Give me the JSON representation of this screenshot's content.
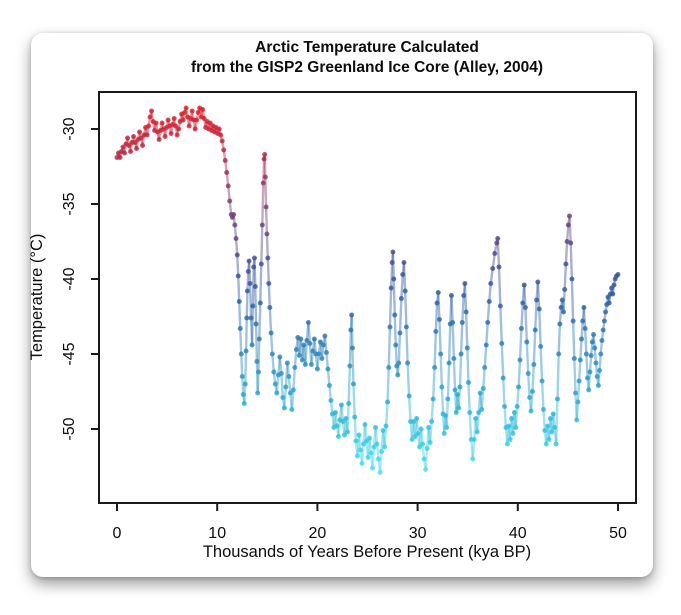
{
  "chart": {
    "title_line1": "Arctic Temperature Calculated",
    "title_line2": "from the GISP2 Greenland Ice Core (Alley, 2004)"
  },
  "chart_data": {
    "type": "line",
    "title": "Arctic Temperature Calculated from the GISP2 Greenland Ice Core (Alley, 2004)",
    "xlabel": "Thousands of Years Before Present (kya BP)",
    "ylabel": "Temperature (°C)",
    "xlim": [
      0,
      50
    ],
    "ylim": [
      -54.9,
      -27.5
    ],
    "x_ticks": [
      0,
      10,
      20,
      30,
      40,
      50
    ],
    "y_ticks": [
      -30,
      -35,
      -40,
      -45,
      -50
    ],
    "grid": false,
    "legend": false,
    "color_encoding": "point color encodes temperature (warm red to cold cyan)",
    "colormap_stops": [
      [
        -54.0,
        "#60eaf4"
      ],
      [
        -52.5,
        "#49dfee"
      ],
      [
        -51.0,
        "#38cde4"
      ],
      [
        -49.5,
        "#31bbd9"
      ],
      [
        -48.0,
        "#2fa9ce"
      ],
      [
        -46.5,
        "#2d97c3"
      ],
      [
        -45.0,
        "#2e86b9"
      ],
      [
        -43.5,
        "#2e76af"
      ],
      [
        -42.0,
        "#2f66a5"
      ],
      [
        -40.5,
        "#33599c"
      ],
      [
        -39.0,
        "#435093"
      ],
      [
        -37.5,
        "#584a87"
      ],
      [
        -36.0,
        "#6f4379"
      ],
      [
        -34.5,
        "#833d6b"
      ],
      [
        -33.0,
        "#9c3258"
      ],
      [
        -31.5,
        "#b62a46"
      ],
      [
        -30.0,
        "#cb2435"
      ],
      [
        -28.5,
        "#d81f2a"
      ]
    ],
    "points": [
      [
        0.0,
        -31.9
      ],
      [
        0.15,
        -31.6
      ],
      [
        0.3,
        -31.9
      ],
      [
        0.45,
        -31.5
      ],
      [
        0.6,
        -31.2
      ],
      [
        0.75,
        -31.6
      ],
      [
        0.9,
        -31.0
      ],
      [
        1.05,
        -30.6
      ],
      [
        1.2,
        -31.1
      ],
      [
        1.35,
        -31.5
      ],
      [
        1.5,
        -30.9
      ],
      [
        1.65,
        -30.5
      ],
      [
        1.8,
        -30.9
      ],
      [
        1.95,
        -31.3
      ],
      [
        2.1,
        -30.7
      ],
      [
        2.25,
        -30.2
      ],
      [
        2.4,
        -30.6
      ],
      [
        2.55,
        -31.1
      ],
      [
        2.7,
        -30.4
      ],
      [
        2.85,
        -29.9
      ],
      [
        3.0,
        -30.4
      ],
      [
        3.15,
        -29.8
      ],
      [
        3.3,
        -29.2
      ],
      [
        3.45,
        -28.8
      ],
      [
        3.6,
        -29.5
      ],
      [
        3.75,
        -30.1
      ],
      [
        3.9,
        -29.6
      ],
      [
        4.05,
        -30.2
      ],
      [
        4.2,
        -30.7
      ],
      [
        4.35,
        -30.1
      ],
      [
        4.5,
        -29.6
      ],
      [
        4.65,
        -30.0
      ],
      [
        4.8,
        -30.5
      ],
      [
        4.95,
        -29.9
      ],
      [
        5.1,
        -29.4
      ],
      [
        5.25,
        -29.8
      ],
      [
        5.4,
        -30.3
      ],
      [
        5.55,
        -29.7
      ],
      [
        5.7,
        -29.3
      ],
      [
        5.85,
        -29.8
      ],
      [
        6.0,
        -30.4
      ],
      [
        6.15,
        -30.0
      ],
      [
        6.3,
        -29.5
      ],
      [
        6.45,
        -29.0
      ],
      [
        6.6,
        -29.4
      ],
      [
        6.75,
        -28.9
      ],
      [
        6.9,
        -28.6
      ],
      [
        7.05,
        -29.2
      ],
      [
        7.2,
        -29.8
      ],
      [
        7.35,
        -29.3
      ],
      [
        7.5,
        -28.8
      ],
      [
        7.65,
        -29.4
      ],
      [
        7.8,
        -30.0
      ],
      [
        7.95,
        -29.4
      ],
      [
        8.1,
        -28.9
      ],
      [
        8.25,
        -28.6
      ],
      [
        8.4,
        -29.2
      ],
      [
        8.55,
        -28.7
      ],
      [
        8.7,
        -29.3
      ],
      [
        8.85,
        -29.9
      ],
      [
        9.0,
        -29.5
      ],
      [
        9.15,
        -30.0
      ],
      [
        9.3,
        -29.6
      ],
      [
        9.45,
        -30.1
      ],
      [
        9.6,
        -29.8
      ],
      [
        9.75,
        -30.2
      ],
      [
        9.9,
        -29.9
      ],
      [
        10.05,
        -30.3
      ],
      [
        10.2,
        -30.0
      ],
      [
        10.35,
        -30.4
      ],
      [
        10.5,
        -30.8
      ],
      [
        10.65,
        -31.4
      ],
      [
        10.8,
        -32.1
      ],
      [
        10.95,
        -32.9
      ],
      [
        11.1,
        -33.8
      ],
      [
        11.25,
        -34.8
      ],
      [
        11.4,
        -35.7
      ],
      [
        11.52,
        -35.9
      ],
      [
        11.64,
        -35.7
      ],
      [
        11.76,
        -36.4
      ],
      [
        11.88,
        -37.3
      ],
      [
        12.0,
        -38.4
      ],
      [
        12.1,
        -39.8
      ],
      [
        12.2,
        -41.5
      ],
      [
        12.3,
        -43.3
      ],
      [
        12.4,
        -45.0
      ],
      [
        12.5,
        -46.5
      ],
      [
        12.6,
        -47.7
      ],
      [
        12.7,
        -48.3
      ],
      [
        12.8,
        -47.0
      ],
      [
        12.88,
        -44.8
      ],
      [
        12.95,
        -42.6
      ],
      [
        13.02,
        -40.8
      ],
      [
        13.1,
        -39.5
      ],
      [
        13.18,
        -38.8
      ],
      [
        13.28,
        -40.3
      ],
      [
        13.38,
        -42.6
      ],
      [
        13.48,
        -44.4
      ],
      [
        13.56,
        -41.8
      ],
      [
        13.64,
        -39.2
      ],
      [
        13.72,
        -38.6
      ],
      [
        13.8,
        -40.5
      ],
      [
        13.88,
        -43.0
      ],
      [
        13.96,
        -45.5
      ],
      [
        14.04,
        -47.6
      ],
      [
        14.12,
        -46.2
      ],
      [
        14.2,
        -44.0
      ],
      [
        14.3,
        -41.6
      ],
      [
        14.4,
        -39.0
      ],
      [
        14.5,
        -36.4
      ],
      [
        14.6,
        -33.6
      ],
      [
        14.68,
        -32.0
      ],
      [
        14.74,
        -31.7
      ],
      [
        14.8,
        -33.2
      ],
      [
        14.88,
        -35.2
      ],
      [
        14.96,
        -37.0
      ],
      [
        15.05,
        -38.6
      ],
      [
        15.15,
        -40.3
      ],
      [
        15.25,
        -41.9
      ],
      [
        15.38,
        -43.6
      ],
      [
        15.5,
        -45.0
      ],
      [
        15.65,
        -46.2
      ],
      [
        15.8,
        -47.0
      ],
      [
        15.95,
        -47.6
      ],
      [
        16.1,
        -46.4
      ],
      [
        16.25,
        -45.2
      ],
      [
        16.4,
        -46.3
      ],
      [
        16.55,
        -47.9
      ],
      [
        16.7,
        -48.6
      ],
      [
        16.85,
        -47.2
      ],
      [
        17.0,
        -45.6
      ],
      [
        17.15,
        -46.5
      ],
      [
        17.3,
        -47.6
      ],
      [
        17.45,
        -48.7
      ],
      [
        17.6,
        -47.4
      ],
      [
        17.75,
        -45.9
      ],
      [
        17.9,
        -44.7
      ],
      [
        18.05,
        -43.9
      ],
      [
        18.2,
        -45.1
      ],
      [
        18.35,
        -44.0
      ],
      [
        18.5,
        -45.4
      ],
      [
        18.65,
        -44.4
      ],
      [
        18.8,
        -45.7
      ],
      [
        18.95,
        -44.1
      ],
      [
        19.1,
        -42.9
      ],
      [
        19.25,
        -44.3
      ],
      [
        19.4,
        -45.7
      ],
      [
        19.55,
        -44.8
      ],
      [
        19.7,
        -44.0
      ],
      [
        19.85,
        -45.0
      ],
      [
        20.0,
        -46.0
      ],
      [
        20.15,
        -45.0
      ],
      [
        20.3,
        -44.2
      ],
      [
        20.45,
        -45.3
      ],
      [
        20.6,
        -44.4
      ],
      [
        20.75,
        -43.8
      ],
      [
        20.9,
        -44.9
      ],
      [
        21.05,
        -46.0
      ],
      [
        21.2,
        -47.1
      ],
      [
        21.35,
        -48.1
      ],
      [
        21.5,
        -49.0
      ],
      [
        21.65,
        -49.9
      ],
      [
        21.8,
        -48.9
      ],
      [
        21.95,
        -49.8
      ],
      [
        22.1,
        -50.5
      ],
      [
        22.25,
        -49.4
      ],
      [
        22.4,
        -48.4
      ],
      [
        22.55,
        -49.5
      ],
      [
        22.7,
        -50.4
      ],
      [
        22.85,
        -49.3
      ],
      [
        23.0,
        -50.2
      ],
      [
        23.12,
        -48.3
      ],
      [
        23.24,
        -45.8
      ],
      [
        23.34,
        -43.4
      ],
      [
        23.42,
        -42.4
      ],
      [
        23.5,
        -44.6
      ],
      [
        23.6,
        -47.0
      ],
      [
        23.72,
        -49.2
      ],
      [
        23.85,
        -50.8
      ],
      [
        24.0,
        -51.8
      ],
      [
        24.15,
        -50.4
      ],
      [
        24.3,
        -51.4
      ],
      [
        24.45,
        -52.3
      ],
      [
        24.6,
        -51.0
      ],
      [
        24.75,
        -49.7
      ],
      [
        24.9,
        -50.8
      ],
      [
        25.05,
        -51.9
      ],
      [
        25.2,
        -50.6
      ],
      [
        25.35,
        -51.6
      ],
      [
        25.5,
        -52.6
      ],
      [
        25.65,
        -51.2
      ],
      [
        25.8,
        -49.9
      ],
      [
        25.95,
        -51.0
      ],
      [
        26.1,
        -52.0
      ],
      [
        26.25,
        -52.9
      ],
      [
        26.4,
        -51.5
      ],
      [
        26.55,
        -50.1
      ],
      [
        26.7,
        -51.2
      ],
      [
        26.85,
        -49.8
      ],
      [
        27.0,
        -48.2
      ],
      [
        27.12,
        -45.9
      ],
      [
        27.24,
        -43.2
      ],
      [
        27.36,
        -40.6
      ],
      [
        27.46,
        -38.9
      ],
      [
        27.54,
        -38.2
      ],
      [
        27.62,
        -40.0
      ],
      [
        27.72,
        -42.4
      ],
      [
        27.82,
        -44.4
      ],
      [
        27.92,
        -45.8
      ],
      [
        28.02,
        -46.4
      ],
      [
        28.12,
        -45.6
      ],
      [
        28.24,
        -43.6
      ],
      [
        28.38,
        -41.3
      ],
      [
        28.52,
        -39.7
      ],
      [
        28.64,
        -38.9
      ],
      [
        28.76,
        -40.8
      ],
      [
        28.88,
        -43.2
      ],
      [
        29.0,
        -45.6
      ],
      [
        29.15,
        -47.8
      ],
      [
        29.3,
        -49.5
      ],
      [
        29.45,
        -50.7
      ],
      [
        29.6,
        -49.5
      ],
      [
        29.75,
        -50.5
      ],
      [
        29.9,
        -49.3
      ],
      [
        30.05,
        -50.3
      ],
      [
        30.2,
        -51.2
      ],
      [
        30.35,
        -50.0
      ],
      [
        30.5,
        -51.0
      ],
      [
        30.65,
        -52.0
      ],
      [
        30.8,
        -52.7
      ],
      [
        30.95,
        -51.3
      ],
      [
        31.1,
        -49.9
      ],
      [
        31.25,
        -50.9
      ],
      [
        31.4,
        -49.5
      ],
      [
        31.55,
        -48.0
      ],
      [
        31.7,
        -45.9
      ],
      [
        31.82,
        -43.5
      ],
      [
        31.94,
        -41.6
      ],
      [
        32.06,
        -40.9
      ],
      [
        32.18,
        -42.7
      ],
      [
        32.3,
        -45.0
      ],
      [
        32.42,
        -47.2
      ],
      [
        32.54,
        -49.0
      ],
      [
        32.66,
        -50.3
      ],
      [
        32.78,
        -49.1
      ],
      [
        32.9,
        -49.9
      ],
      [
        33.02,
        -48.0
      ],
      [
        33.14,
        -45.6
      ],
      [
        33.26,
        -43.0
      ],
      [
        33.38,
        -41.1
      ],
      [
        33.5,
        -42.9
      ],
      [
        33.62,
        -45.3
      ],
      [
        33.74,
        -47.4
      ],
      [
        33.86,
        -48.9
      ],
      [
        33.98,
        -47.7
      ],
      [
        34.1,
        -48.6
      ],
      [
        34.22,
        -47.2
      ],
      [
        34.34,
        -45.0
      ],
      [
        34.46,
        -42.9
      ],
      [
        34.6,
        -41.1
      ],
      [
        34.72,
        -40.3
      ],
      [
        34.84,
        -42.2
      ],
      [
        34.96,
        -44.6
      ],
      [
        35.08,
        -46.9
      ],
      [
        35.2,
        -48.9
      ],
      [
        35.35,
        -50.7
      ],
      [
        35.5,
        -52.0
      ],
      [
        35.65,
        -50.7
      ],
      [
        35.8,
        -49.3
      ],
      [
        35.95,
        -50.2
      ],
      [
        36.1,
        -48.9
      ],
      [
        36.25,
        -47.6
      ],
      [
        36.4,
        -48.7
      ],
      [
        36.55,
        -47.3
      ],
      [
        36.7,
        -45.9
      ],
      [
        36.85,
        -44.4
      ],
      [
        37.0,
        -42.9
      ],
      [
        37.15,
        -41.5
      ],
      [
        37.3,
        -40.3
      ],
      [
        37.5,
        -39.3
      ],
      [
        37.7,
        -38.3
      ],
      [
        37.9,
        -37.6
      ],
      [
        38.0,
        -37.3
      ],
      [
        38.12,
        -39.2
      ],
      [
        38.26,
        -41.8
      ],
      [
        38.4,
        -44.3
      ],
      [
        38.54,
        -46.6
      ],
      [
        38.68,
        -48.5
      ],
      [
        38.82,
        -49.9
      ],
      [
        38.96,
        -51.0
      ],
      [
        39.1,
        -49.8
      ],
      [
        39.24,
        -50.7
      ],
      [
        39.38,
        -49.3
      ],
      [
        39.52,
        -50.3
      ],
      [
        39.66,
        -48.9
      ],
      [
        39.8,
        -49.9
      ],
      [
        39.94,
        -48.5
      ],
      [
        40.08,
        -47.2
      ],
      [
        40.22,
        -45.4
      ],
      [
        40.36,
        -43.3
      ],
      [
        40.5,
        -41.6
      ],
      [
        40.64,
        -40.4
      ],
      [
        40.76,
        -41.9
      ],
      [
        40.9,
        -44.2
      ],
      [
        41.04,
        -46.3
      ],
      [
        41.18,
        -47.9
      ],
      [
        41.32,
        -48.8
      ],
      [
        41.46,
        -47.5
      ],
      [
        41.6,
        -45.7
      ],
      [
        41.74,
        -43.4
      ],
      [
        41.88,
        -41.4
      ],
      [
        42.0,
        -40.2
      ],
      [
        42.14,
        -42.0
      ],
      [
        42.28,
        -44.5
      ],
      [
        42.42,
        -46.8
      ],
      [
        42.56,
        -48.7
      ],
      [
        42.7,
        -50.1
      ],
      [
        42.84,
        -51.0
      ],
      [
        42.98,
        -49.8
      ],
      [
        43.12,
        -50.7
      ],
      [
        43.26,
        -49.3
      ],
      [
        43.4,
        -50.2
      ],
      [
        43.54,
        -49.0
      ],
      [
        43.68,
        -49.9
      ],
      [
        43.82,
        -51.0
      ],
      [
        43.96,
        -48.0
      ],
      [
        44.08,
        -45.0
      ],
      [
        44.2,
        -43.0
      ],
      [
        44.32,
        -41.9
      ],
      [
        44.44,
        -41.4
      ],
      [
        44.56,
        -42.2
      ],
      [
        44.68,
        -40.7
      ],
      [
        44.8,
        -39.0
      ],
      [
        44.92,
        -37.5
      ],
      [
        45.04,
        -36.4
      ],
      [
        45.16,
        -35.8
      ],
      [
        45.28,
        -37.6
      ],
      [
        45.4,
        -40.0
      ],
      [
        45.52,
        -42.8
      ],
      [
        45.64,
        -45.3
      ],
      [
        45.76,
        -47.6
      ],
      [
        45.88,
        -49.4
      ],
      [
        46.0,
        -48.2
      ],
      [
        46.12,
        -46.8
      ],
      [
        46.24,
        -45.4
      ],
      [
        46.36,
        -44.0
      ],
      [
        46.48,
        -42.8
      ],
      [
        46.6,
        -41.9
      ],
      [
        46.72,
        -43.3
      ],
      [
        46.84,
        -45.0
      ],
      [
        46.96,
        -46.6
      ],
      [
        47.08,
        -47.4
      ],
      [
        47.2,
        -46.2
      ],
      [
        47.32,
        -45.1
      ],
      [
        47.44,
        -44.2
      ],
      [
        47.56,
        -43.7
      ],
      [
        47.68,
        -44.6
      ],
      [
        47.8,
        -45.6
      ],
      [
        47.92,
        -46.5
      ],
      [
        48.04,
        -47.1
      ],
      [
        48.16,
        -46.1
      ],
      [
        48.28,
        -45.0
      ],
      [
        48.4,
        -44.1
      ],
      [
        48.52,
        -43.4
      ],
      [
        48.64,
        -42.8
      ],
      [
        48.76,
        -42.2
      ],
      [
        48.88,
        -41.7
      ],
      [
        49.0,
        -41.2
      ],
      [
        49.12,
        -41.6
      ],
      [
        49.24,
        -41.0
      ],
      [
        49.36,
        -40.6
      ],
      [
        49.48,
        -41.0
      ],
      [
        49.6,
        -40.4
      ],
      [
        49.72,
        -40.0
      ],
      [
        49.85,
        -39.8
      ],
      [
        50.0,
        -39.7
      ]
    ]
  }
}
